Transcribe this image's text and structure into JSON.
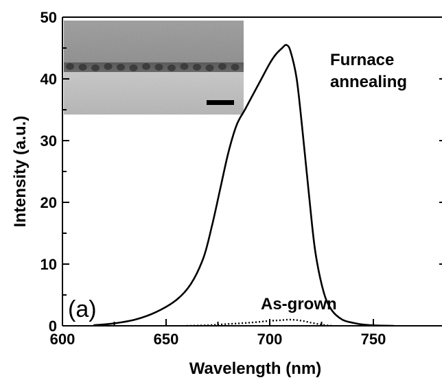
{
  "chart_data": {
    "type": "line",
    "xlabel": "Wavelength (nm)",
    "ylabel": "Intensity (a.u.)",
    "xlim": [
      600,
      770
    ],
    "ylim": [
      0,
      50
    ],
    "x_ticks": [
      600,
      650,
      700,
      750
    ],
    "y_ticks": [
      0,
      10,
      20,
      30,
      40,
      50
    ],
    "grid": false,
    "panel_label": "(a)",
    "inset": {
      "type": "micrograph",
      "scale_bar": true
    },
    "series": [
      {
        "label": "Furnace annealing",
        "style": "solid",
        "color": "#000000",
        "x": [
          615,
          625,
          635,
          645,
          655,
          662,
          668,
          672,
          676,
          680,
          684,
          688,
          692,
          696,
          700,
          703,
          706,
          708,
          710,
          713,
          716,
          719,
          722,
          726,
          730,
          735,
          740,
          745,
          752,
          760
        ],
        "y": [
          0.1,
          0.4,
          1.0,
          2.2,
          4.2,
          6.8,
          11.0,
          16.0,
          22.0,
          28.0,
          32.5,
          35.0,
          37.5,
          40.0,
          42.5,
          44.0,
          45.0,
          45.5,
          44.5,
          40.0,
          31.0,
          21.0,
          12.0,
          5.5,
          2.5,
          1.0,
          0.5,
          0.2,
          0.05,
          0.0
        ]
      },
      {
        "label": "As-grown",
        "style": "dotted",
        "color": "#000000",
        "x": [
          660,
          670,
          680,
          690,
          700,
          705,
          710,
          715,
          720,
          725,
          730
        ],
        "y": [
          0.0,
          0.1,
          0.3,
          0.5,
          0.8,
          0.9,
          1.0,
          0.85,
          0.5,
          0.2,
          0.0
        ]
      }
    ]
  }
}
